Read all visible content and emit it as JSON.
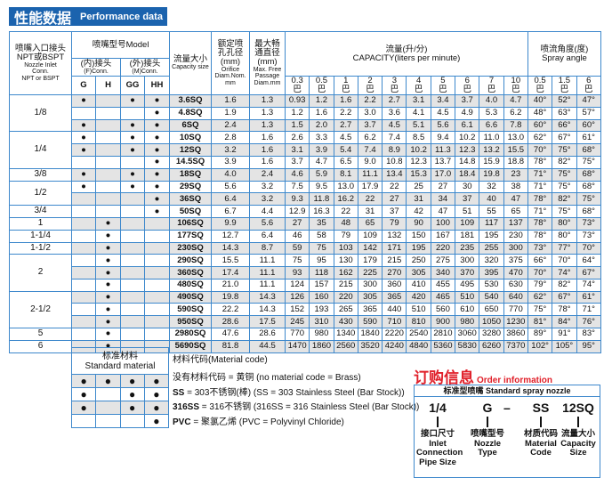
{
  "title": {
    "cn": "性能数据",
    "en": "Performance data"
  },
  "header": {
    "inlet": [
      "喷嘴入口接头",
      "NPT或BSPT",
      "Nozzle Inlet",
      "Conn.",
      "NPT or BSPT"
    ],
    "model": "喷嘴型号Model",
    "female": [
      "(内)接头",
      "(F)Conn."
    ],
    "male": [
      "(外)接头",
      "(M)Conn."
    ],
    "conn_cols": [
      "G",
      "H",
      "GG",
      "HH"
    ],
    "capacity_size": [
      "流量大小",
      "Capacity size"
    ],
    "orifice": [
      "额定喷",
      "孔孔径",
      "(mm)",
      "Orifice",
      "Diam.Nom.",
      "mm"
    ],
    "passage": [
      "最大畅",
      "通直径",
      "(mm)",
      "Max. Free",
      "Passage",
      "Diam.mm"
    ],
    "capacity": [
      "流量(升/分)",
      "CAPACITY(liters per minute)"
    ],
    "spray": [
      "喷流角度(度)",
      "Spray angle"
    ],
    "unit": "巴",
    "pressures": [
      "0.3",
      "0.5",
      "1",
      "2",
      "3",
      "4",
      "5",
      "6",
      "7",
      "10"
    ],
    "angle_pressures": [
      "0.5",
      "1.5",
      "6"
    ]
  },
  "groups": [
    {
      "inlet": "1/8",
      "rows": 3
    },
    {
      "inlet": "1/4",
      "rows": 3
    },
    {
      "inlet": "3/8",
      "rows": 1
    },
    {
      "inlet": "1/2",
      "rows": 2
    },
    {
      "inlet": "3/4",
      "rows": 1
    },
    {
      "inlet": "1",
      "rows": 1
    },
    {
      "inlet": "1-1/4",
      "rows": 1
    },
    {
      "inlet": "1-1/2",
      "rows": 1
    },
    {
      "inlet": "2",
      "rows": 3
    },
    {
      "inlet": "2-1/2",
      "rows": 3
    },
    {
      "inlet": "5",
      "rows": 1
    },
    {
      "inlet": "6",
      "rows": 1
    }
  ],
  "rows": [
    {
      "conn": [
        1,
        0,
        1,
        1
      ],
      "model": "3.6SQ",
      "orifice": "1.6",
      "passage": "1.3",
      "cap": [
        "0.93",
        "1.2",
        "1.6",
        "2.2",
        "2.7",
        "3.1",
        "3.4",
        "3.7",
        "4.0",
        "4.7"
      ],
      "angle": [
        "40°",
        "52°",
        "47°"
      ]
    },
    {
      "conn": [
        0,
        0,
        0,
        1
      ],
      "model": "4.8SQ",
      "orifice": "1.9",
      "passage": "1.3",
      "cap": [
        "1.2",
        "1.6",
        "2.2",
        "3.0",
        "3.6",
        "4.1",
        "4.5",
        "4.9",
        "5.3",
        "6.2"
      ],
      "angle": [
        "48°",
        "63°",
        "57°"
      ]
    },
    {
      "conn": [
        1,
        0,
        1,
        1
      ],
      "model": "6SQ",
      "orifice": "2.4",
      "passage": "1.3",
      "cap": [
        "1.5",
        "2.0",
        "2.7",
        "3.7",
        "4.5",
        "5.1",
        "5.6",
        "6.1",
        "6.6",
        "7.8"
      ],
      "angle": [
        "60°",
        "66°",
        "60°"
      ]
    },
    {
      "conn": [
        1,
        0,
        1,
        1
      ],
      "model": "10SQ",
      "orifice": "2.8",
      "passage": "1.6",
      "cap": [
        "2.6",
        "3.3",
        "4.5",
        "6.2",
        "7.4",
        "8.5",
        "9.4",
        "10.2",
        "11.0",
        "13.0"
      ],
      "angle": [
        "62°",
        "67°",
        "61°"
      ]
    },
    {
      "conn": [
        1,
        0,
        1,
        1
      ],
      "model": "12SQ",
      "orifice": "3.2",
      "passage": "1.6",
      "cap": [
        "3.1",
        "3.9",
        "5.4",
        "7.4",
        "8.9",
        "10.2",
        "11.3",
        "12.3",
        "13.2",
        "15.5"
      ],
      "angle": [
        "70°",
        "75°",
        "68°"
      ]
    },
    {
      "conn": [
        0,
        0,
        0,
        1
      ],
      "model": "14.5SQ",
      "orifice": "3.9",
      "passage": "1.6",
      "cap": [
        "3.7",
        "4.7",
        "6.5",
        "9.0",
        "10.8",
        "12.3",
        "13.7",
        "14.8",
        "15.9",
        "18.8"
      ],
      "angle": [
        "78°",
        "82°",
        "75°"
      ]
    },
    {
      "conn": [
        1,
        0,
        1,
        1
      ],
      "model": "18SQ",
      "orifice": "4.0",
      "passage": "2.4",
      "cap": [
        "4.6",
        "5.9",
        "8.1",
        "11.1",
        "13.4",
        "15.3",
        "17.0",
        "18.4",
        "19.8",
        "23"
      ],
      "angle": [
        "71°",
        "75°",
        "68°"
      ]
    },
    {
      "conn": [
        1,
        0,
        1,
        1
      ],
      "model": "29SQ",
      "orifice": "5.6",
      "passage": "3.2",
      "cap": [
        "7.5",
        "9.5",
        "13.0",
        "17.9",
        "22",
        "25",
        "27",
        "30",
        "32",
        "38"
      ],
      "angle": [
        "71°",
        "75°",
        "68°"
      ]
    },
    {
      "conn": [
        0,
        0,
        0,
        1
      ],
      "model": "36SQ",
      "orifice": "6.4",
      "passage": "3.2",
      "cap": [
        "9.3",
        "11.8",
        "16.2",
        "22",
        "27",
        "31",
        "34",
        "37",
        "40",
        "47"
      ],
      "angle": [
        "78°",
        "82°",
        "75°"
      ]
    },
    {
      "conn": [
        0,
        0,
        0,
        1
      ],
      "model": "50SQ",
      "orifice": "6.7",
      "passage": "4.4",
      "cap": [
        "12.9",
        "16.3",
        "22",
        "31",
        "37",
        "42",
        "47",
        "51",
        "55",
        "65"
      ],
      "angle": [
        "71°",
        "75°",
        "68°"
      ]
    },
    {
      "conn": [
        0,
        1,
        0,
        0
      ],
      "model": "106SQ",
      "orifice": "9.9",
      "passage": "5.6",
      "cap": [
        "27",
        "35",
        "48",
        "65",
        "79",
        "90",
        "100",
        "109",
        "117",
        "137"
      ],
      "angle": [
        "78°",
        "80°",
        "73°"
      ]
    },
    {
      "conn": [
        0,
        1,
        0,
        0
      ],
      "model": "177SQ",
      "orifice": "12.7",
      "passage": "6.4",
      "cap": [
        "46",
        "58",
        "79",
        "109",
        "132",
        "150",
        "167",
        "181",
        "195",
        "230"
      ],
      "angle": [
        "78°",
        "80°",
        "73°"
      ]
    },
    {
      "conn": [
        0,
        1,
        0,
        0
      ],
      "model": "230SQ",
      "orifice": "14.3",
      "passage": "8.7",
      "cap": [
        "59",
        "75",
        "103",
        "142",
        "171",
        "195",
        "220",
        "235",
        "255",
        "300"
      ],
      "angle": [
        "73°",
        "77°",
        "70°"
      ]
    },
    {
      "conn": [
        0,
        1,
        0,
        0
      ],
      "model": "290SQ",
      "orifice": "15.5",
      "passage": "11.1",
      "cap": [
        "75",
        "95",
        "130",
        "179",
        "215",
        "250",
        "275",
        "300",
        "320",
        "375"
      ],
      "angle": [
        "66°",
        "70°",
        "64°"
      ]
    },
    {
      "conn": [
        0,
        1,
        0,
        0
      ],
      "model": "360SQ",
      "orifice": "17.4",
      "passage": "11.1",
      "cap": [
        "93",
        "118",
        "162",
        "225",
        "270",
        "305",
        "340",
        "370",
        "395",
        "470"
      ],
      "angle": [
        "70°",
        "74°",
        "67°"
      ]
    },
    {
      "conn": [
        0,
        1,
        0,
        0
      ],
      "model": "480SQ",
      "orifice": "21.0",
      "passage": "11.1",
      "cap": [
        "124",
        "157",
        "215",
        "300",
        "360",
        "410",
        "455",
        "495",
        "530",
        "630"
      ],
      "angle": [
        "79°",
        "82°",
        "74°"
      ]
    },
    {
      "conn": [
        0,
        1,
        0,
        0
      ],
      "model": "490SQ",
      "orifice": "19.8",
      "passage": "14.3",
      "cap": [
        "126",
        "160",
        "220",
        "305",
        "365",
        "420",
        "465",
        "510",
        "540",
        "640"
      ],
      "angle": [
        "62°",
        "67°",
        "61°"
      ]
    },
    {
      "conn": [
        0,
        1,
        0,
        0
      ],
      "model": "590SQ",
      "orifice": "22.2",
      "passage": "14.3",
      "cap": [
        "152",
        "193",
        "265",
        "365",
        "440",
        "510",
        "560",
        "610",
        "650",
        "770"
      ],
      "angle": [
        "75°",
        "78°",
        "71°"
      ]
    },
    {
      "conn": [
        0,
        1,
        0,
        0
      ],
      "model": "950SQ",
      "orifice": "28.6",
      "passage": "17.5",
      "cap": [
        "245",
        "310",
        "430",
        "590",
        "710",
        "810",
        "900",
        "980",
        "1050",
        "1230"
      ],
      "angle": [
        "81°",
        "84°",
        "76°"
      ]
    },
    {
      "conn": [
        0,
        1,
        0,
        0
      ],
      "model": "2980SQ",
      "orifice": "47.6",
      "passage": "28.6",
      "cap": [
        "770",
        "980",
        "1340",
        "1840",
        "2220",
        "2540",
        "2810",
        "3060",
        "3280",
        "3860"
      ],
      "angle": [
        "89°",
        "91°",
        "83°"
      ]
    },
    {
      "conn": [
        0,
        1,
        0,
        0
      ],
      "model": "5690SQ",
      "orifice": "81.8",
      "passage": "44.5",
      "cap": [
        "1470",
        "1860",
        "2560",
        "3520",
        "4240",
        "4840",
        "5360",
        "5830",
        "6260",
        "7370"
      ],
      "angle": [
        "102°",
        "105°",
        "95°"
      ]
    }
  ],
  "material": {
    "header": [
      "标准材料",
      "Standard material"
    ],
    "matrix": [
      [
        1,
        1,
        1,
        1
      ],
      [
        1,
        0,
        1,
        1
      ],
      [
        1,
        0,
        1,
        1
      ],
      [
        0,
        0,
        0,
        1
      ]
    ],
    "code_title": "材料代码(Material code)",
    "lines": [
      {
        "b": "",
        "t": "没有材料代码 = 黄铜  (no material code = Brass)"
      },
      {
        "b": "SS",
        "t": " = 303不锈钢(棒)  (SS = 303 Stainless Steel (Bar Stock))"
      },
      {
        "b": "316SS",
        "t": " = 316不锈钢 (316SS = 316 Stainless Steel (Bar Stock))"
      },
      {
        "b": "PVC",
        "t": " = 聚氯乙烯 (PVC = Polyvinyl Chloride)"
      }
    ]
  },
  "order": {
    "title_cn": "订购信息",
    "title_en": "Order information",
    "box_title": "标准型喷嘴 Standard spray nozzle",
    "dash": "–",
    "parts": [
      {
        "code": "1/4",
        "label": [
          "接口尺寸",
          "Inlet",
          "Connection",
          "Pipe Size"
        ]
      },
      {
        "code": "G",
        "label": [
          "喷嘴型号",
          "Nozzle",
          "Type"
        ]
      },
      {
        "code": "SS",
        "label": [
          "材质代码",
          "Material",
          "Code"
        ]
      },
      {
        "code": "12SQ",
        "label": [
          "流量大小",
          "Capacity",
          "Size"
        ]
      }
    ]
  },
  "colors": {
    "border": "#3d88cc",
    "title_bg": "#1b63ae",
    "row_shade": "#e4e4e4",
    "order_red": "#e0202a"
  }
}
